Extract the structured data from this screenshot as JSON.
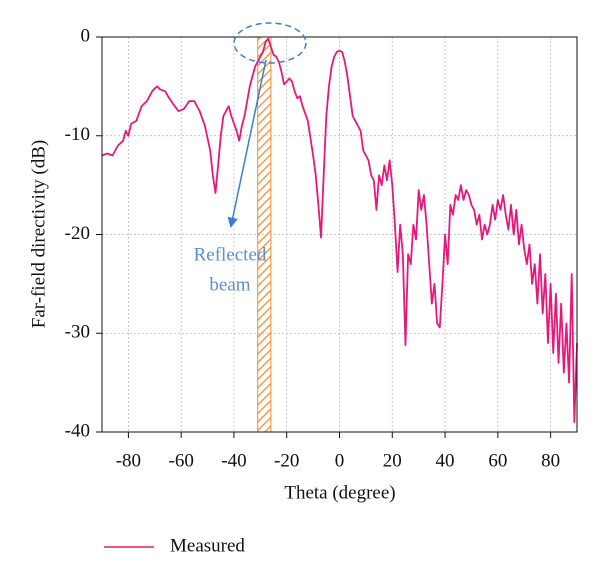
{
  "chart_data": {
    "type": "line",
    "xlabel": "Theta (degree)",
    "ylabel": "Far-field directivity (dB)",
    "xlim": [
      -90,
      90
    ],
    "ylim": [
      -40,
      0
    ],
    "xticks": [
      -80,
      -60,
      -40,
      -20,
      0,
      20,
      40,
      60,
      80
    ],
    "yticks": [
      -40,
      -30,
      -20,
      -10,
      0
    ],
    "grid": true,
    "legend": "bottom-left",
    "annotation": [
      "Reflected",
      "beam"
    ],
    "highlight_xlim": [
      -31,
      -26
    ],
    "x": [
      -90,
      -88,
      -86,
      -84,
      -82,
      -81,
      -80,
      -79,
      -77,
      -75,
      -73,
      -71,
      -70,
      -69,
      -68,
      -66,
      -65,
      -63,
      -61,
      -59,
      -57,
      -55,
      -53,
      -51,
      -49,
      -48,
      -47,
      -46,
      -45,
      -44,
      -43,
      -42,
      -41,
      -39,
      -38,
      -37,
      -36,
      -35,
      -34,
      -33,
      -32,
      -31,
      -30,
      -29,
      -28,
      -27,
      -26,
      -25,
      -24,
      -23,
      -22,
      -21,
      -20,
      -19,
      -18,
      -17,
      -16,
      -15,
      -14,
      -12,
      -10,
      -9,
      -8,
      -7,
      -6,
      -5,
      -4,
      -3,
      -2,
      -1,
      0,
      1,
      2,
      3,
      4,
      5,
      6,
      7,
      8,
      9,
      10,
      11,
      12,
      13,
      14,
      15,
      16,
      17,
      18,
      19,
      20,
      21,
      22,
      23,
      24,
      25,
      26,
      27,
      28,
      29,
      30,
      31,
      32,
      33,
      34,
      35,
      36,
      37,
      38,
      39,
      40,
      41,
      42,
      43,
      44,
      45,
      46,
      47,
      48,
      49,
      50,
      51,
      52,
      53,
      54,
      55,
      56,
      57,
      58,
      59,
      60,
      61,
      62,
      63,
      64,
      65,
      66,
      67,
      68,
      69,
      70,
      71,
      72,
      73,
      74,
      75,
      76,
      77,
      78,
      79,
      80,
      81,
      82,
      83,
      84,
      85,
      86,
      87,
      88,
      89,
      90
    ],
    "series": [
      {
        "name": "Measured",
        "color": "#e6197a",
        "values": [
          -12,
          -11.8,
          -12,
          -11,
          -10.5,
          -9.5,
          -10,
          -8.8,
          -8.5,
          -7,
          -6.5,
          -5.5,
          -5.2,
          -5,
          -5.3,
          -5.5,
          -6,
          -6.8,
          -7.5,
          -7.3,
          -6.5,
          -6.5,
          -7.5,
          -9,
          -11.5,
          -14,
          -15.8,
          -13,
          -10,
          -8,
          -7.5,
          -7,
          -8,
          -9.5,
          -10.5,
          -9,
          -8,
          -6.5,
          -5,
          -4,
          -3,
          -2.5,
          -2,
          -1.5,
          -0.5,
          -0.2,
          -1,
          -1.8,
          -2,
          -2.5,
          -3.5,
          -4.8,
          -4.5,
          -4.2,
          -4.5,
          -5.5,
          -6.2,
          -6,
          -7,
          -8.5,
          -12,
          -14,
          -17,
          -20.3,
          -14,
          -8,
          -5,
          -3,
          -2,
          -1.5,
          -1.4,
          -1.5,
          -2.5,
          -4,
          -6,
          -8,
          -8.5,
          -9,
          -9.5,
          -11.5,
          -12,
          -12.5,
          -14,
          -14.5,
          -17.5,
          -14,
          -15,
          -13,
          -14.5,
          -12.5,
          -15,
          -19,
          -23.8,
          -19,
          -22,
          -31.2,
          -22,
          -23,
          -19,
          -20.5,
          -15.5,
          -17.5,
          -16,
          -19,
          -23,
          -27,
          -25,
          -29,
          -29.4,
          -25,
          -20,
          -23,
          -17,
          -18,
          -16,
          -16.5,
          -15,
          -16.5,
          -15.5,
          -16,
          -17,
          -17.5,
          -19,
          -18,
          -20.5,
          -19,
          -20,
          -19,
          -17,
          -18.5,
          -16.5,
          -17.5,
          -16,
          -18,
          -19.5,
          -17,
          -20,
          -17.5,
          -21,
          -19,
          -21.5,
          -23,
          -21,
          -25,
          -23,
          -27,
          -22,
          -28,
          -24,
          -31,
          -25,
          -32,
          -26,
          -33,
          -27,
          -34,
          -29,
          -35,
          -24,
          -39,
          -31
        ]
      }
    ]
  }
}
